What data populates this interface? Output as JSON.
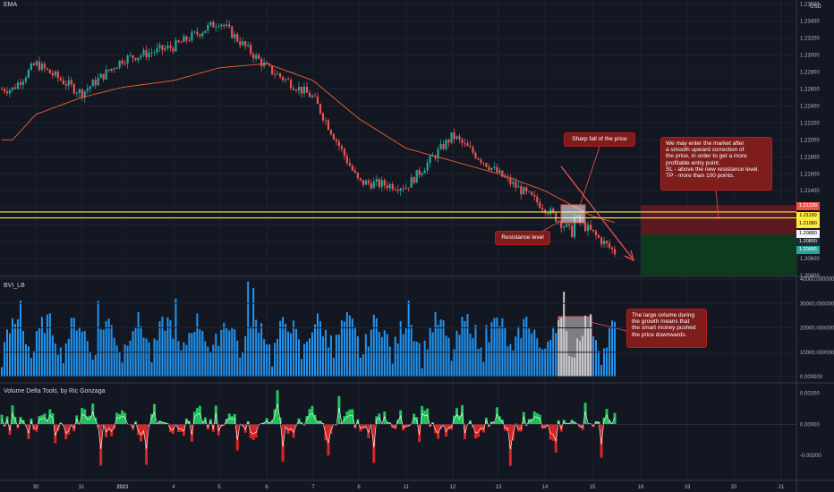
{
  "panes": {
    "price_title": "EMA",
    "volume_title": "BVI_LB",
    "delta_title": "Volume Delta Tools, by Ric Gonzaga"
  },
  "currency": "USD",
  "price_axis_ticks": [
    "1.23600",
    "1.23400",
    "1.23200",
    "1.23000",
    "1.22800",
    "1.22600",
    "1.22400",
    "1.22200",
    "1.22000",
    "1.21800",
    "1.21600",
    "1.21400",
    "1.21200",
    "1.21000",
    "1.20800",
    "1.20600",
    "1.20400"
  ],
  "volume_axis_ticks": [
    "40000.000000",
    "30000.000000",
    "20000.000000",
    "10000.000000",
    "0.000000"
  ],
  "delta_axis_ticks": [
    "0.00200",
    "0.00000",
    "-0.00200"
  ],
  "x_axis_ticks": [
    "30",
    "31",
    "2021",
    "4",
    "5",
    "6",
    "7",
    "8",
    "11",
    "12",
    "13",
    "14",
    "15",
    "18",
    "19",
    "20",
    "21",
    "22"
  ],
  "price_tags": {
    "sl": "1.21230",
    "upper": "1.21150",
    "lower": "1.21080",
    "current": "1.20880",
    "tp_a": "1.20800",
    "tp_b": "1.20685"
  },
  "annotations": {
    "sharp_fall": "Sharp fall of the price",
    "resistance": "Resistance level",
    "strategy": "We may enter the market after\na smooth upward correction of\nthe price, in order to get a more\nprofitable entry point.\nSL - above the new resistance level.\nTP - more than 100 points.",
    "volume_note": "The large ovlume during\nthe growth means that\nthe smart money pushed\nthe price downwards."
  },
  "colors": {
    "background": "#131722",
    "bull": "#26a69a",
    "bear": "#ef5350",
    "ema": "#e4572e",
    "resistance_line": "#ffeb3b",
    "volume_bar": "#2196f3",
    "delta_up": "#22c55e",
    "delta_down": "#dc2626",
    "stop_zone": "#5a1a1f",
    "target_zone": "#0c3b1e",
    "callout_bg": "#7f1d1d"
  },
  "chart_data": [
    {
      "type": "candlestick",
      "pane": "price",
      "indicator": "EMA",
      "x": [
        "30",
        "31",
        "2021",
        "4",
        "5",
        "6",
        "7",
        "8",
        "11",
        "12",
        "13",
        "14",
        "15",
        "18"
      ],
      "close_by_day": [
        1.226,
        1.229,
        1.2255,
        1.2295,
        1.231,
        1.234,
        1.2285,
        1.225,
        1.215,
        1.2145,
        1.2205,
        1.216,
        1.212,
        1.2068
      ],
      "ema_by_day": [
        1.22,
        1.223,
        1.225,
        1.2262,
        1.227,
        1.2285,
        1.229,
        1.227,
        1.2225,
        1.219,
        1.2175,
        1.216,
        1.214,
        1.211
      ],
      "resistance_lines": [
        1.2115,
        1.2108
      ],
      "ylim": [
        1.204,
        1.2365
      ]
    },
    {
      "type": "bar",
      "pane": "volume",
      "title": "BVI_LB",
      "ylim": [
        0,
        40000
      ],
      "highlighted_range": [
        "15",
        "15"
      ]
    },
    {
      "type": "area",
      "pane": "delta",
      "title": "Volume Delta Tools, by Ric Gonzaga",
      "ylim": [
        -0.0035,
        0.0025
      ]
    }
  ]
}
